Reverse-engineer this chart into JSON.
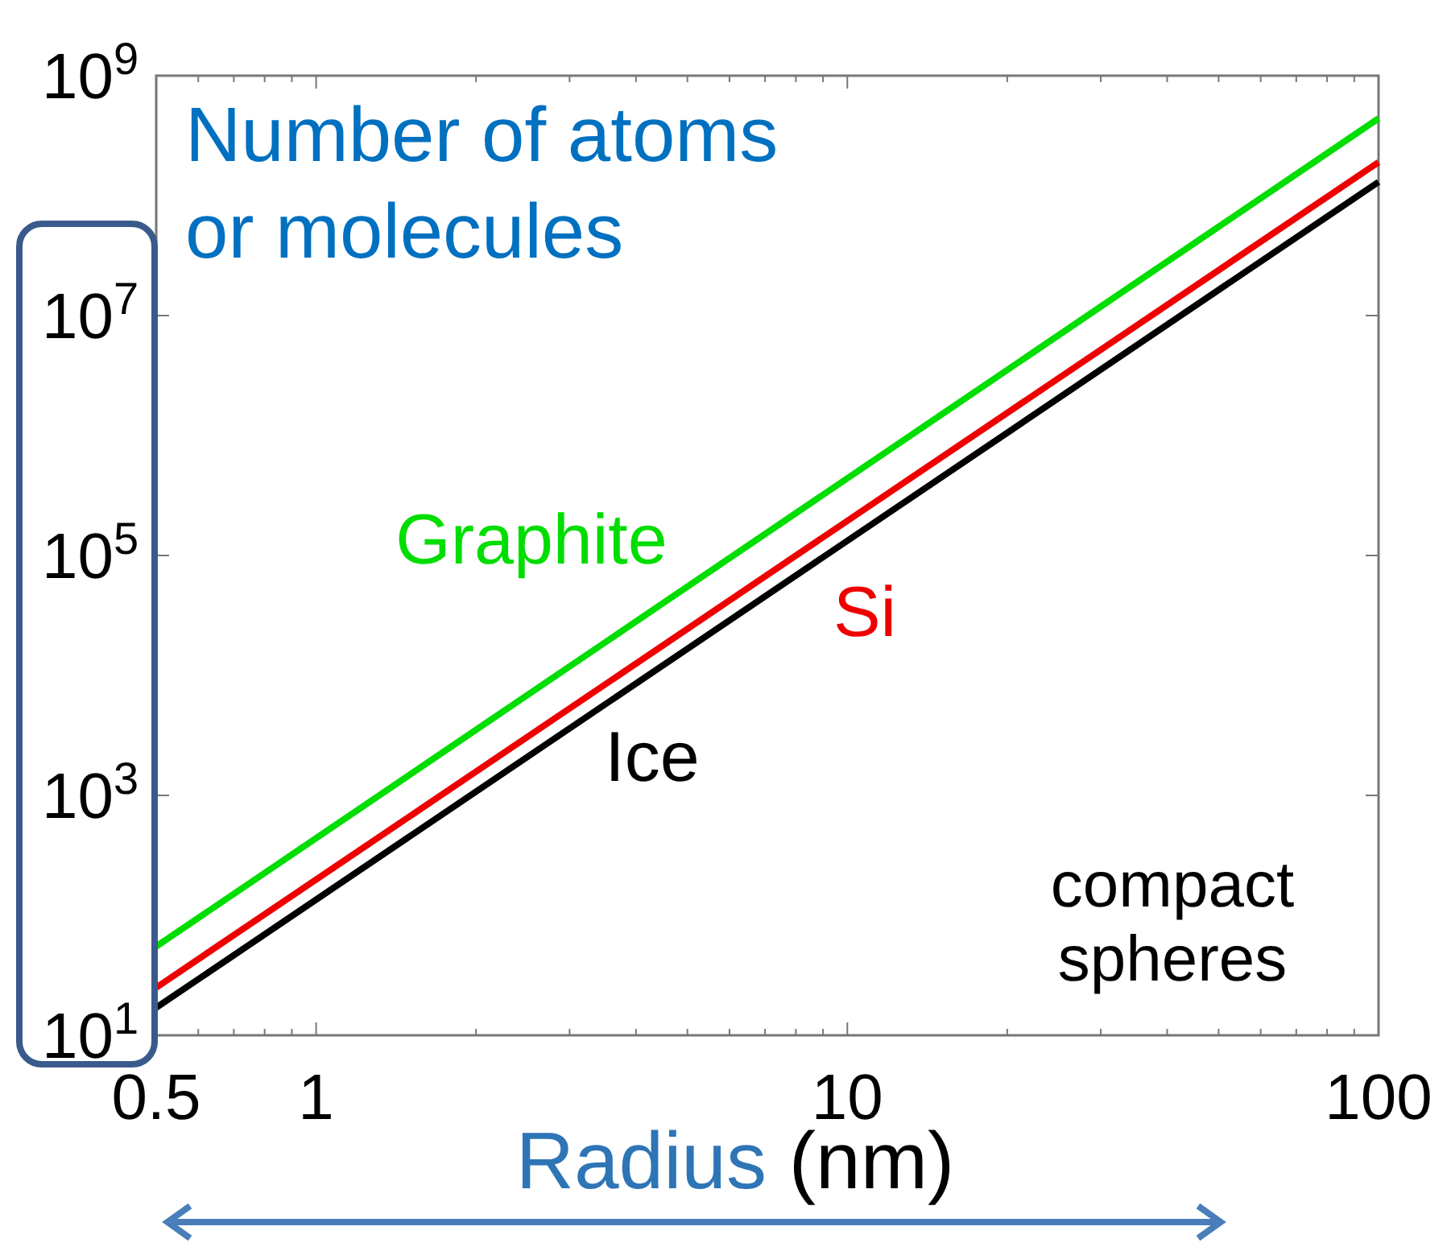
{
  "chart_data": {
    "type": "line",
    "title": "Number of atoms or molecules",
    "xlabel": "Radius (nm)",
    "x": [
      0.5,
      100
    ],
    "series": [
      {
        "name": "Graphite",
        "color": "#00dd00",
        "values": [
          55,
          440000000
        ]
      },
      {
        "name": "Si",
        "color": "#ee0000",
        "values": [
          25,
          190000000
        ]
      },
      {
        "name": "Ice",
        "color": "#000000",
        "values": [
          17,
          130000000
        ]
      }
    ],
    "log": "xy",
    "xlim": [
      0.5,
      100
    ],
    "ylim": [
      10,
      1000000000
    ],
    "xticks": [
      0.5,
      1,
      10,
      100
    ],
    "yticks": [
      {
        "value": 10,
        "label": "10$^{1}$"
      },
      {
        "value": 1000,
        "label": "10$^{3}$"
      },
      {
        "value": 100000,
        "label": "10$^{5}$"
      },
      {
        "value": 10000000,
        "label": "10$^{7}$"
      },
      {
        "value": 1000000000,
        "label": "10$^{9}$"
      }
    ],
    "grid": false,
    "marker": "none",
    "line_style": "solid",
    "annotations": [
      "compact\nspheres"
    ]
  }
}
